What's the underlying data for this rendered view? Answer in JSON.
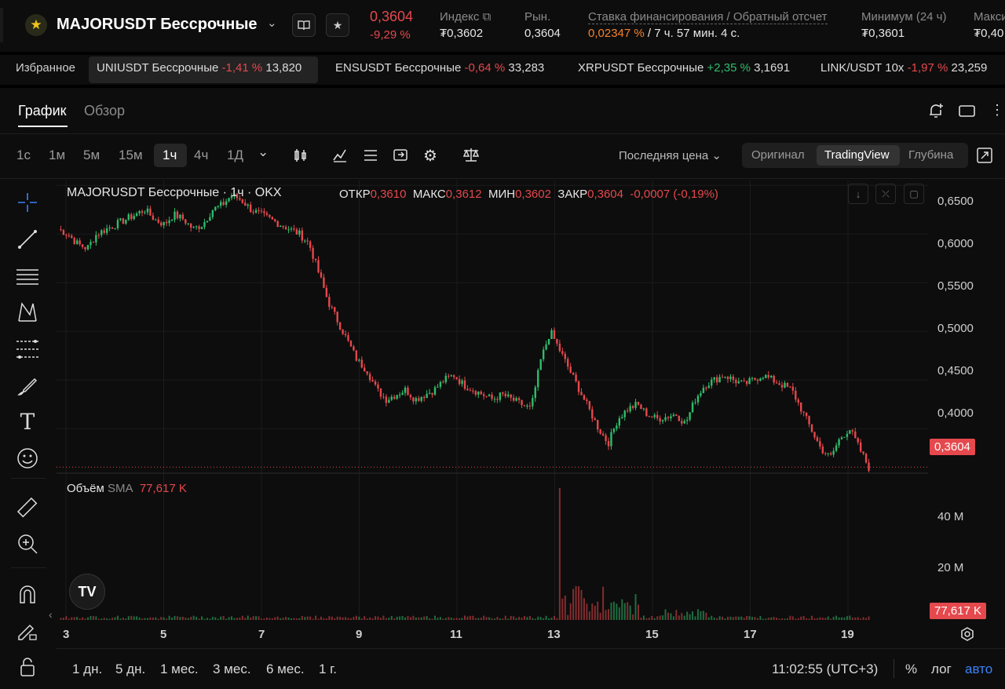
{
  "header": {
    "symbol": "MAJORUSDT Бессрочные",
    "last_price": "0,3604",
    "change_pct": "-9,29 %",
    "stats": [
      {
        "label": "Индекс",
        "value": "₮0,3602"
      },
      {
        "label": "Рын.",
        "value": "0,3604"
      },
      {
        "label": "Ставка финансирования / Обратный отсчет",
        "value_rate": "0,02347 %",
        "value_countdown": "/ 7 ч. 57 мин. 4 с."
      },
      {
        "label": "Минимум (24 ч)",
        "value": "₮0,3601"
      },
      {
        "label": "Максимум",
        "value": "₮0,40"
      }
    ]
  },
  "favorites": {
    "label": "Избранное",
    "items": [
      {
        "name": "UNIUSDT Бессрочные",
        "change": "-1,41 %",
        "price": "13,820"
      },
      {
        "name": "ENSUSDT Бессрочные",
        "change": "-0,64 %",
        "price": "33,283"
      },
      {
        "name": "XRPUSDT Бессрочные",
        "change": "+2,35 %",
        "price": "3,1691"
      },
      {
        "name": "LINK/USDT 10x",
        "change": "-1,97 %",
        "price": "23,259"
      }
    ]
  },
  "tabs": [
    "График",
    "Обзор"
  ],
  "timeframes": [
    "1с",
    "1м",
    "5м",
    "15м",
    "1ч",
    "4ч",
    "1Д"
  ],
  "price_type": "Последняя цена",
  "views": [
    "Оригинал",
    "TradingView",
    "Глубина"
  ],
  "legend": {
    "title": "MAJORUSDT Бессрочные · 1ч · OKX",
    "open_label": "ОТКР",
    "open": "0,3610",
    "high_label": "МАКС",
    "high": "0,3612",
    "low_label": "МИН",
    "low": "0,3602",
    "close_label": "ЗАКР",
    "close": "0,3604",
    "change": "-0,0007 (-0,19%)"
  },
  "volume_legend": {
    "label": "Объём",
    "sma": "SMA",
    "value": "77,617 K"
  },
  "price_axis": [
    "0,6500",
    "0,6000",
    "0,5500",
    "0,5000",
    "0,4500",
    "0,4000"
  ],
  "price_badge": "0,3604",
  "volume_axis": [
    "40 M",
    "20 M"
  ],
  "volume_badge": "77,617 K",
  "time_axis": [
    "3",
    "5",
    "7",
    "9",
    "11",
    "13",
    "15",
    "17",
    "19"
  ],
  "ranges": [
    "1 дн.",
    "5 дн.",
    "1 мес.",
    "3 мес.",
    "6 мес.",
    "1 г."
  ],
  "clock": "11:02:55 (UTC+3)",
  "scale_opts": [
    "%",
    "лог",
    "авто"
  ],
  "colors": {
    "up": "#2ebd6b",
    "down": "#e5484d",
    "accent": "#3b82f6",
    "funding": "#f5812b"
  },
  "chart_data": {
    "type": "candlestick",
    "interval": "1ч",
    "x_range": [
      "3",
      "19"
    ],
    "ylim": [
      0.355,
      0.655
    ],
    "close_path": [
      0.605,
      0.6,
      0.59,
      0.585,
      0.6,
      0.605,
      0.61,
      0.615,
      0.62,
      0.625,
      0.615,
      0.61,
      0.62,
      0.615,
      0.605,
      0.61,
      0.625,
      0.63,
      0.64,
      0.635,
      0.625,
      0.62,
      0.615,
      0.61,
      0.605,
      0.6,
      0.59,
      0.56,
      0.53,
      0.51,
      0.49,
      0.47,
      0.46,
      0.44,
      0.43,
      0.435,
      0.44,
      0.43,
      0.435,
      0.44,
      0.45,
      0.455,
      0.445,
      0.44,
      0.435,
      0.43,
      0.435,
      0.43,
      0.425,
      0.42,
      0.47,
      0.5,
      0.48,
      0.46,
      0.44,
      0.42,
      0.4,
      0.385,
      0.41,
      0.42,
      0.425,
      0.415,
      0.41,
      0.412,
      0.415,
      0.405,
      0.43,
      0.445,
      0.45,
      0.455,
      0.45,
      0.445,
      0.45,
      0.455,
      0.45,
      0.445,
      0.44,
      0.42,
      0.4,
      0.38,
      0.37,
      0.39,
      0.4,
      0.38,
      0.36
    ],
    "volume_scale": [
      0,
      50
    ],
    "volume_unit": "M",
    "last_price": 0.3604
  }
}
